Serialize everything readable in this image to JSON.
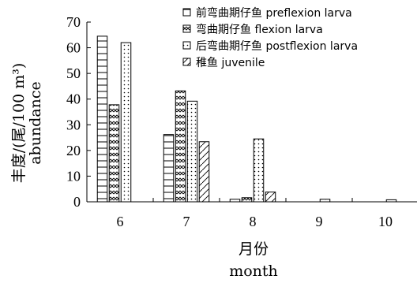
{
  "chart_data": {
    "type": "bar",
    "categories": [
      "6",
      "7",
      "8",
      "9",
      "10"
    ],
    "series": [
      {
        "name": "前弯曲期仔鱼    preflexion larva",
        "pattern": "hlines",
        "values": [
          64.5,
          26.2,
          1.0,
          0.0,
          0.0
        ]
      },
      {
        "name": "弯曲期仔鱼    flexion larva",
        "pattern": "zigzag",
        "values": [
          37.8,
          43.2,
          1.6,
          0.0,
          0.0
        ]
      },
      {
        "name": "后弯曲期仔鱼    postflexion larva",
        "pattern": "dots",
        "values": [
          62.0,
          39.2,
          24.5,
          1.0,
          0.8
        ]
      },
      {
        "name": "稚鱼    juvenile",
        "pattern": "diagonal",
        "values": [
          0.0,
          23.4,
          3.8,
          0.0,
          0.0
        ]
      }
    ],
    "ylim": [
      0,
      70
    ],
    "yticks": [
      0,
      10,
      20,
      30,
      40,
      50,
      60,
      70
    ],
    "ylabel_cn": "丰度/(尾/100 m³)",
    "ylabel_en": "abundance",
    "xlabel_cn": "月份",
    "xlabel_en": "month",
    "legend_position": "top-right",
    "grid": false
  }
}
